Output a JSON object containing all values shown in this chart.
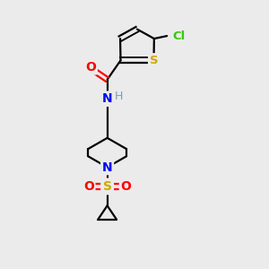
{
  "background_color": "#ebebeb",
  "atom_colors": {
    "C": "#000000",
    "H": "#7a9faa",
    "N": "#0000ff",
    "O": "#ff0000",
    "S_thio": "#ccaa00",
    "S_sulfonyl": "#ccaa00",
    "Cl": "#33cc00"
  },
  "figsize": [
    3.0,
    3.0
  ],
  "dpi": 100
}
